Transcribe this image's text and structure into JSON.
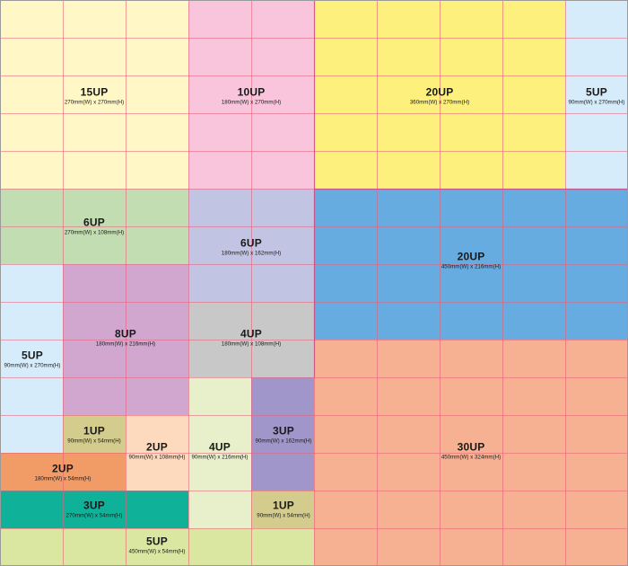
{
  "colors": {
    "grid_line": "#e8607a",
    "group_border": "#c84a86"
  },
  "blocks": [
    {
      "id": "15up",
      "count_label": "15UP",
      "size_label": "270mm(W) x 270mm(H)",
      "color": "#fff8c6"
    },
    {
      "id": "10up",
      "count_label": "10UP",
      "size_label": "180mm(W) x 270mm(H)",
      "color": "#f9c5dc"
    },
    {
      "id": "20up-yellow",
      "count_label": "20UP",
      "size_label": "360mm(W) x 270mm(H)",
      "color": "#fdf07c"
    },
    {
      "id": "5up-right",
      "count_label": "5UP",
      "size_label": "90mm(W) x 270mm(H)",
      "color": "#d6ecfb"
    },
    {
      "id": "6up-green",
      "count_label": "6UP",
      "size_label": "270mm(W) x 108mm(H)",
      "color": "#c1ddb1"
    },
    {
      "id": "6up-lavender",
      "count_label": "6UP",
      "size_label": "180mm(W) x 162mm(H)",
      "color": "#c2c4e4"
    },
    {
      "id": "20up-blue",
      "count_label": "20UP",
      "size_label": "450mm(W) x 216mm(H)",
      "color": "#66ace0"
    },
    {
      "id": "5up-left",
      "count_label": "5UP",
      "size_label": "90mm(W) x 270mm(H)",
      "color": "#d6ecfb"
    },
    {
      "id": "8up",
      "count_label": "8UP",
      "size_label": "180mm(W) x 216mm(H)",
      "color": "#d1a7d0"
    },
    {
      "id": "4up-gray",
      "count_label": "4UP",
      "size_label": "180mm(W) x 108mm(H)",
      "color": "#c8c8c8"
    },
    {
      "id": "30up",
      "count_label": "30UP",
      "size_label": "450mm(W) x 324mm(H)",
      "color": "#f5b192"
    },
    {
      "id": "4up-pale",
      "count_label": "4UP",
      "size_label": "90mm(W) x 216mm(H)",
      "color": "#e7f0cb"
    },
    {
      "id": "3up-purple",
      "count_label": "3UP",
      "size_label": "90mm(W) x 162mm(H)",
      "color": "#a096c9"
    },
    {
      "id": "1up-khaki",
      "count_label": "1UP",
      "size_label": "90mm(W) x 54mm(H)",
      "color": "#d3cc8c"
    },
    {
      "id": "2up-peach",
      "count_label": "2UP",
      "size_label": "90mm(W) x 108mm(H)",
      "color": "#fdd9bd"
    },
    {
      "id": "2up-orange",
      "count_label": "2UP",
      "size_label": "180mm(W) x 54mm(H)",
      "color": "#f19b66"
    },
    {
      "id": "3up-teal",
      "count_label": "3UP",
      "size_label": "270mm(W) x 54mm(H)",
      "color": "#0fb198"
    },
    {
      "id": "1up-olive",
      "count_label": "1UP",
      "size_label": "90mm(W) x 54mm(H)",
      "color": "#d3cc8c"
    },
    {
      "id": "5up-bottom",
      "count_label": "5UP",
      "size_label": "450mm(W) x 54mm(H)",
      "color": "#d9e7a1"
    }
  ]
}
